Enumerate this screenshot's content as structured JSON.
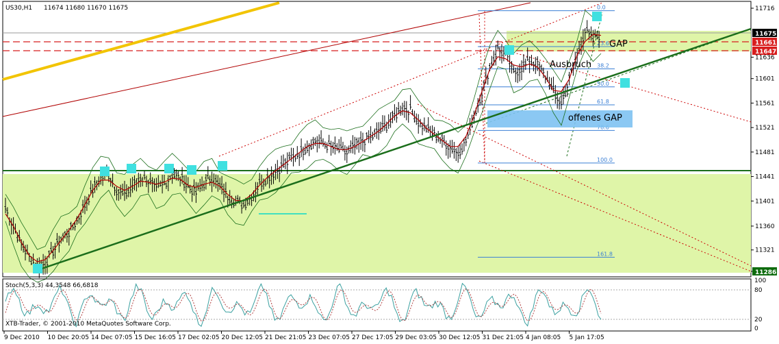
{
  "header": {
    "symbol": "US30,H1",
    "ohlc": "11674 11680 11670 11675"
  },
  "stoch_header": "Stoch(5,3,3) 44,3548 66,6818",
  "watermark": "XTB-Trader, © 2001-2010 MetaQuotes Software Corp.",
  "colors": {
    "background": "#ffffff",
    "zone": "#dff5a8",
    "trend": "#1b6e1b",
    "channel": "#b00000",
    "yellow": "#f2c400",
    "fib": "#3a7fd5",
    "gap_box": "#7ec2f2",
    "marker": "#40e0e0",
    "price_box": "#000000",
    "red_box": "#d81e1e",
    "green_box": "#0d6b0d"
  },
  "annotations": {
    "gap": "GAP",
    "ausbruch": "Ausbruch",
    "offenes_gap": "offenes GAP"
  },
  "price_axis": {
    "ticks": [
      "11716",
      "11636",
      "11601",
      "11561",
      "11521",
      "11481",
      "11441",
      "11401",
      "11360",
      "11321",
      "11286"
    ],
    "current": "11675",
    "red_level_1": "11661",
    "red_level_2": "11647",
    "green_level": "11286"
  },
  "stoch_axis": {
    "ticks": [
      "80",
      "20"
    ],
    "top": "100",
    "bottom": "0"
  },
  "fib_labels": [
    "0.0",
    "23.6",
    "38.2",
    "50.0",
    "61.8",
    "78.6",
    "100.0",
    "161.8"
  ],
  "chart_data": {
    "type": "line",
    "title": "US30,H1",
    "x_tick_labels": [
      "9 Dec 2010",
      "10 Dec 20:05",
      "14 Dec 07:05",
      "15 Dec 16:05",
      "17 Dec 02:05",
      "20 Dec 12:05",
      "21 Dec 21:05",
      "23 Dec 07:05",
      "27 Dec 17:05",
      "29 Dec 03:05",
      "30 Dec 12:05",
      "31 Dec 21:05",
      "4 Jan 08:05",
      "5 Jan 17:05"
    ],
    "y_ticks": [
      11716,
      11636,
      11601,
      11561,
      11521,
      11481,
      11441,
      11401,
      11360,
      11321,
      11286
    ],
    "ylim": [
      11265,
      11730
    ],
    "series": [
      {
        "values": [
          11390,
          11360,
          11330,
          11310,
          11295,
          11300,
          11320,
          11340,
          11350,
          11370,
          11395,
          11420,
          11440,
          11445,
          11420,
          11410,
          11425,
          11440,
          11435,
          11420,
          11430,
          11445,
          11440,
          11425,
          11415,
          11430,
          11440,
          11425,
          11410,
          11400,
          11395,
          11410,
          11430,
          11440,
          11450,
          11460,
          11470,
          11480,
          11490,
          11500,
          11495,
          11490,
          11485,
          11480,
          11490,
          11500,
          11505,
          11515,
          11525,
          11540,
          11555,
          11550,
          11530,
          11520,
          11510,
          11500,
          11490,
          11480,
          11500,
          11540,
          11580,
          11620,
          11650,
          11640,
          11610,
          11620,
          11630,
          11625,
          11605,
          11580,
          11560,
          11600,
          11640,
          11680,
          11665,
          11675
        ]
      }
    ],
    "levels": {
      "gap_zone": [
        11647,
        11680
      ],
      "lower_zone": [
        11286,
        11441
      ],
      "gap_lines": [
        11661,
        11647
      ],
      "horizontal_support": 11450,
      "offenes_gap": [
        11523,
        11545
      ]
    },
    "fib_retracement": {
      "levels": [
        0.0,
        23.6,
        38.2,
        50.0,
        61.8,
        78.6,
        100.0,
        161.8
      ],
      "high": 11712,
      "low": 11463
    },
    "stochastic": {
      "params": "5,3,3",
      "main": 44.3548,
      "signal": 66.6818,
      "levels": [
        80,
        20
      ]
    }
  }
}
